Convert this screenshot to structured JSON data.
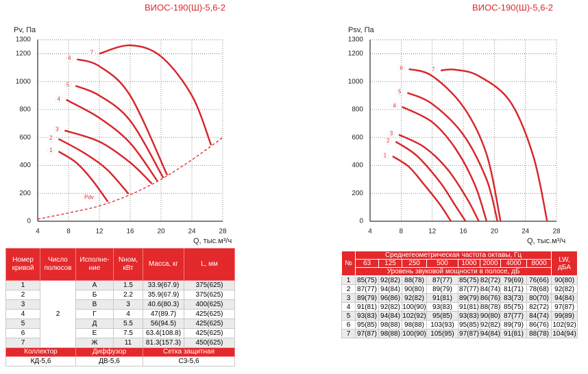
{
  "chart_data": [
    {
      "type": "line",
      "title": "ВИОС-190(Ш)-5,6-2",
      "ylabel": "Pv, Па",
      "xlabel": "Q, тыс.м³/ч",
      "xlim": [
        4,
        28
      ],
      "ylim": [
        0,
        1300
      ],
      "xticks": [
        4,
        8,
        12,
        16,
        20,
        24,
        28
      ],
      "yticks": [
        0,
        200,
        400,
        600,
        800,
        1000,
        1200,
        1300
      ],
      "grid": true,
      "series": [
        {
          "name": "1",
          "color": "#d8282c",
          "x": [
            6.7,
            9,
            11,
            13.1
          ],
          "values": [
            500,
            420,
            300,
            140
          ]
        },
        {
          "name": "2",
          "color": "#d8282c",
          "x": [
            6.7,
            10,
            13,
            15.8
          ],
          "values": [
            590,
            490,
            370,
            195
          ]
        },
        {
          "name": "3",
          "color": "#d8282c",
          "x": [
            7.5,
            12,
            16,
            18.8
          ],
          "values": [
            650,
            570,
            420,
            270
          ]
        },
        {
          "name": "4",
          "color": "#d8282c",
          "x": [
            7.7,
            12,
            16,
            19.5
          ],
          "values": [
            870,
            740,
            560,
            290
          ]
        },
        {
          "name": "5",
          "color": "#d8282c",
          "x": [
            8.9,
            12,
            16,
            20.3
          ],
          "values": [
            970,
            900,
            720,
            310
          ]
        },
        {
          "name": "6",
          "color": "#d8282c",
          "x": [
            9.1,
            12,
            16,
            20.8
          ],
          "values": [
            1160,
            1110,
            900,
            330
          ]
        },
        {
          "name": "7",
          "color": "#d8282c",
          "x": [
            12,
            16,
            20,
            24,
            26.5
          ],
          "values": [
            1200,
            1260,
            1180,
            900,
            545
          ]
        },
        {
          "name": "Pdv",
          "color": "#d8282c",
          "dashed": true,
          "x": [
            4,
            8,
            12,
            16,
            20,
            24,
            28
          ],
          "values": [
            15,
            60,
            110,
            190,
            300,
            440,
            600
          ]
        }
      ]
    },
    {
      "type": "line",
      "title": "ВИОС-190(Ш)-5,6-2",
      "ylabel": "Psv, Па",
      "xlabel": "Q, тыс.м³/ч",
      "xlim": [
        4,
        28
      ],
      "ylim": [
        0,
        1300
      ],
      "xticks": [
        4,
        8,
        12,
        16,
        20,
        24,
        28
      ],
      "yticks": [
        0,
        200,
        400,
        600,
        800,
        1000,
        1200,
        1300
      ],
      "grid": true,
      "series": [
        {
          "name": "1",
          "color": "#d8282c",
          "x": [
            6.9,
            9,
            11,
            13,
            14.4
          ],
          "values": [
            465,
            390,
            260,
            120,
            0
          ]
        },
        {
          "name": "2",
          "color": "#d8282c",
          "x": [
            7.3,
            10,
            13,
            15,
            16.3
          ],
          "values": [
            570,
            470,
            280,
            110,
            0
          ]
        },
        {
          "name": "3",
          "color": "#d8282c",
          "x": [
            7.7,
            11,
            14,
            16.5,
            18
          ],
          "values": [
            620,
            530,
            370,
            160,
            0
          ]
        },
        {
          "name": "4",
          "color": "#d8282c",
          "x": [
            8.1,
            12,
            15,
            17.5,
            19
          ],
          "values": [
            820,
            710,
            520,
            260,
            0
          ]
        },
        {
          "name": "5",
          "color": "#d8282c",
          "x": [
            8.8,
            12,
            16,
            19,
            20.4
          ],
          "values": [
            920,
            840,
            620,
            300,
            0
          ]
        },
        {
          "name": "6",
          "color": "#d8282c",
          "x": [
            9,
            12,
            16,
            19,
            20.8
          ],
          "values": [
            1090,
            1040,
            820,
            480,
            0
          ]
        },
        {
          "name": "7",
          "color": "#d8282c",
          "x": [
            13.1,
            15,
            18,
            22,
            25,
            26.8
          ],
          "values": [
            1080,
            1085,
            1040,
            860,
            470,
            0
          ]
        }
      ]
    }
  ],
  "left_table": {
    "headers": [
      "Номер кривой",
      "Число полюсов",
      "Исполне-ние",
      "Nном, кВт",
      "Масса, кг",
      "L, мм"
    ],
    "poles": "2",
    "rows": [
      [
        "1",
        "А",
        "1.5",
        "33.9(67.9)",
        "375(625)"
      ],
      [
        "2",
        "Б",
        "2.2",
        "35.9(67.9)",
        "375(625)"
      ],
      [
        "3",
        "В",
        "3",
        "40.6(80.3)",
        "400(625)"
      ],
      [
        "4",
        "Г",
        "4",
        "47(89.7)",
        "425(625)"
      ],
      [
        "5",
        "Д",
        "5.5",
        "56(94.5)",
        "425(625)"
      ],
      [
        "6",
        "Е",
        "7.5",
        "63.4(108.8)",
        "425(625)"
      ],
      [
        "7",
        "Ж",
        "11",
        "81.3(157.3)",
        "450(625)"
      ]
    ],
    "accessory_headers": [
      "Коллектор",
      "Диффузор",
      "Сетка защитная"
    ],
    "accessories": [
      "КД-5,6",
      "ДВ-5,6",
      "С3-5,6"
    ]
  },
  "right_table": {
    "number_header": "№",
    "freq_header": "Среднегеометрическая частота октавы, Гц",
    "frequencies": [
      "63",
      "125",
      "250",
      "500",
      "1000",
      "2000",
      "4000",
      "8000"
    ],
    "level_header": "Уровень звуковой мощности в полосе, дБ",
    "lw_header": "LW, дБА",
    "rows": [
      [
        "1",
        "85(75)",
        "92(82)",
        "88(78)",
        "87(77)",
        "85(75)",
        "82(72)",
        "79(69)",
        "76(66)",
        "90(80)"
      ],
      [
        "2",
        "87(77)",
        "94(84)",
        "90(80)",
        "89(79)",
        "87(77)",
        "84(74)",
        "81(71)",
        "78(68)",
        "92(82)"
      ],
      [
        "3",
        "89(79)",
        "96(86)",
        "92(82)",
        "91(81)",
        "89(79)",
        "86(76)",
        "83(73)",
        "80(70)",
        "94(84)"
      ],
      [
        "4",
        "91(81)",
        "92(82)",
        "100(90)",
        "93(83)",
        "91(81)",
        "88(78)",
        "85(75)",
        "82(72)",
        "97(87)"
      ],
      [
        "5",
        "93(83)",
        "94(84)",
        "102(92)",
        "95(85)",
        "93(83)",
        "90(80)",
        "87(77)",
        "84(74)",
        "99(89)"
      ],
      [
        "6",
        "95(85)",
        "98(88)",
        "98(88)",
        "103(93)",
        "95(85)",
        "92(82)",
        "89(79)",
        "86(76)",
        "102(92)"
      ],
      [
        "7",
        "97(87)",
        "98(88)",
        "100(90)",
        "105(95)",
        "97(87)",
        "94(84)",
        "91(81)",
        "88(78)",
        "104(94)"
      ]
    ]
  }
}
